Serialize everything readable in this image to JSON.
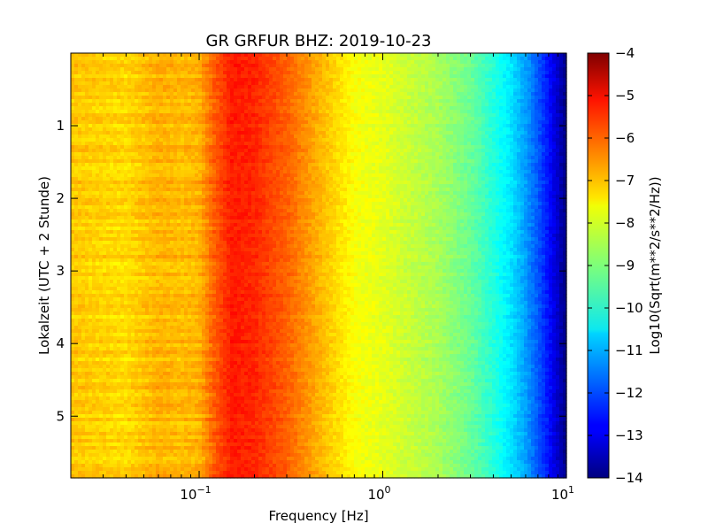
{
  "chart_data": {
    "type": "heatmap",
    "title": "GR GRFUR BHZ: 2019-10-23",
    "xlabel": "Frequency [Hz]",
    "ylabel": "Lokalzeit (UTC + 2 Stunde)",
    "x_scale": "log",
    "x_range": [
      0.02,
      10
    ],
    "y_range": [
      0,
      5.85
    ],
    "y_inverted": true,
    "x_ticks": [
      {
        "value": 0.1,
        "base": "10",
        "exp": "−1"
      },
      {
        "value": 1,
        "base": "10",
        "exp": "0"
      },
      {
        "value": 10,
        "base": "10",
        "exp": "1"
      }
    ],
    "y_ticks": [
      {
        "value": 1,
        "label": "1"
      },
      {
        "value": 2,
        "label": "2"
      },
      {
        "value": 3,
        "label": "3"
      },
      {
        "value": 4,
        "label": "4"
      },
      {
        "value": 5,
        "label": "5"
      }
    ],
    "colorbar": {
      "label": "Log10(Sqrt(m**2/s**2/Hz))",
      "colormap": "jet",
      "range": [
        -14,
        -4
      ],
      "ticks": [
        "−4",
        "−5",
        "−6",
        "−7",
        "−8",
        "−9",
        "−10",
        "−11",
        "−12",
        "−13",
        "−14"
      ]
    },
    "spectrum_profile": {
      "frequency_hz": [
        0.02,
        0.04,
        0.06,
        0.08,
        0.1,
        0.12,
        0.15,
        0.2,
        0.3,
        0.5,
        0.7,
        1.0,
        2.0,
        3.0,
        4.0,
        5.0,
        6.0,
        7.0,
        8.0,
        9.0,
        10.0
      ],
      "log10_amplitude": [
        -7.2,
        -7.4,
        -7.0,
        -7.1,
        -7.0,
        -6.2,
        -5.5,
        -5.6,
        -6.2,
        -7.2,
        -7.8,
        -8.0,
        -8.6,
        -9.2,
        -9.9,
        -10.5,
        -11.2,
        -11.9,
        -12.6,
        -13.3,
        -14.0
      ]
    }
  }
}
